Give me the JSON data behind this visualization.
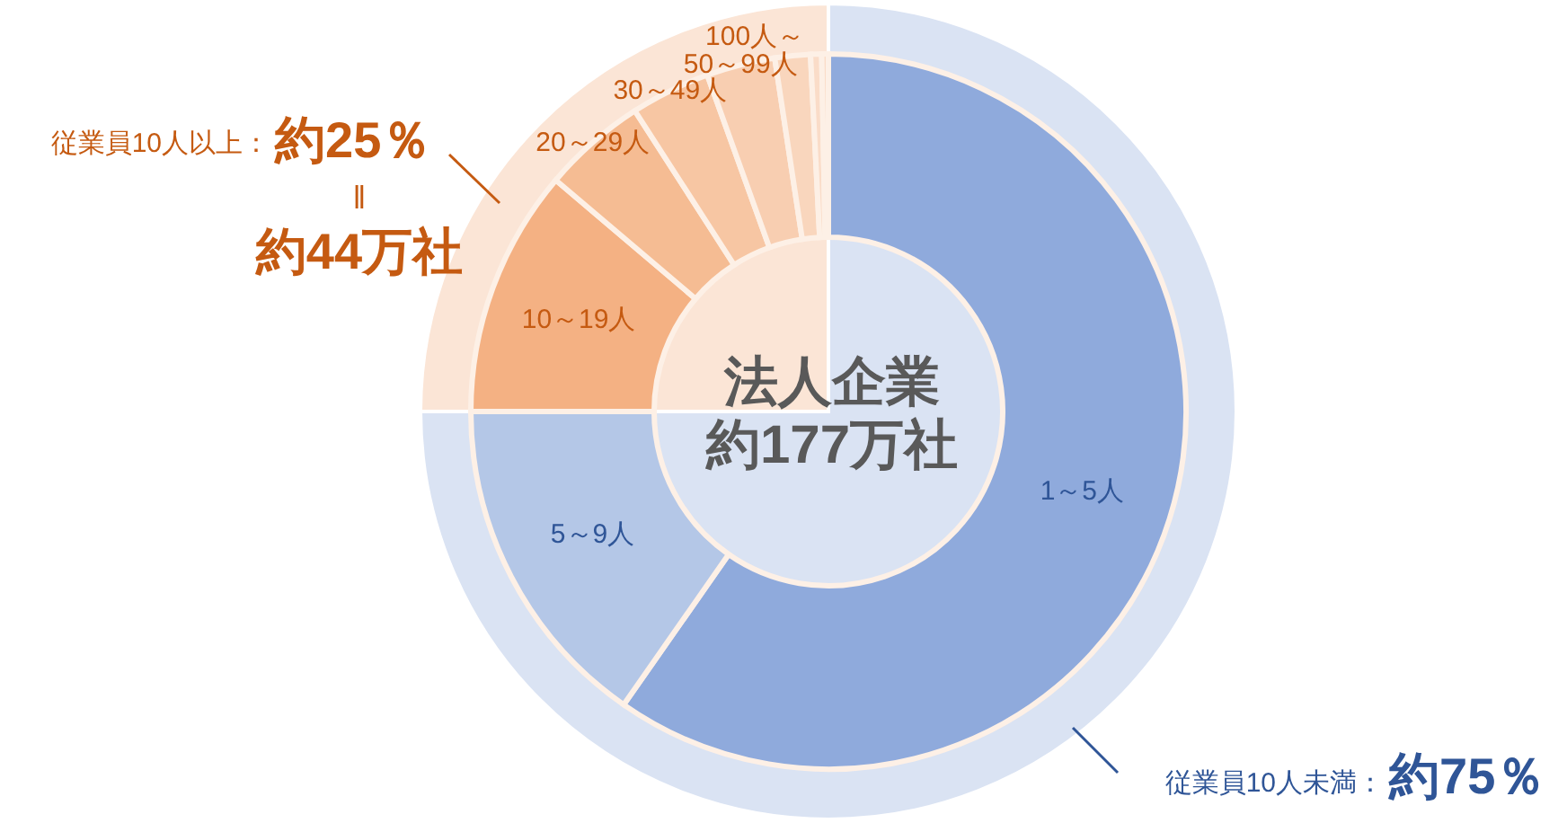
{
  "chart_data": [
    {
      "type": "donut",
      "values": [
        75,
        25
      ],
      "colors": [
        "#dae3f3",
        "#fbe5d6"
      ],
      "annotations": [
        "従業員10人以上：",
        "約25％",
        "‖",
        "約44万社",
        "従業員10人未満：",
        "約75％"
      ]
    },
    {
      "type": "donut",
      "title": "法人企業",
      "subtitle": "約177万社",
      "categories": [
        "1～5人",
        "5～9人",
        "10～19人",
        "20～29人",
        "30～49人",
        "50～99人",
        "100人～",
        null,
        null
      ],
      "values": [
        59.7,
        15.3,
        11.2,
        4.7,
        3.6,
        3.1,
        1.6,
        0.5,
        0.3
      ],
      "colors": [
        "#8faadc",
        "#b4c7e7",
        "#f4b183",
        "#f5bc93",
        "#f7c6a3",
        "#f8ceb1",
        "#f9d6bd",
        "#fadcc8",
        "#fadcc8"
      ]
    },
    {
      "type": "pie",
      "values": [
        75,
        25
      ],
      "colors": [
        "#dae3f3",
        "#fbe5d6"
      ]
    }
  ]
}
